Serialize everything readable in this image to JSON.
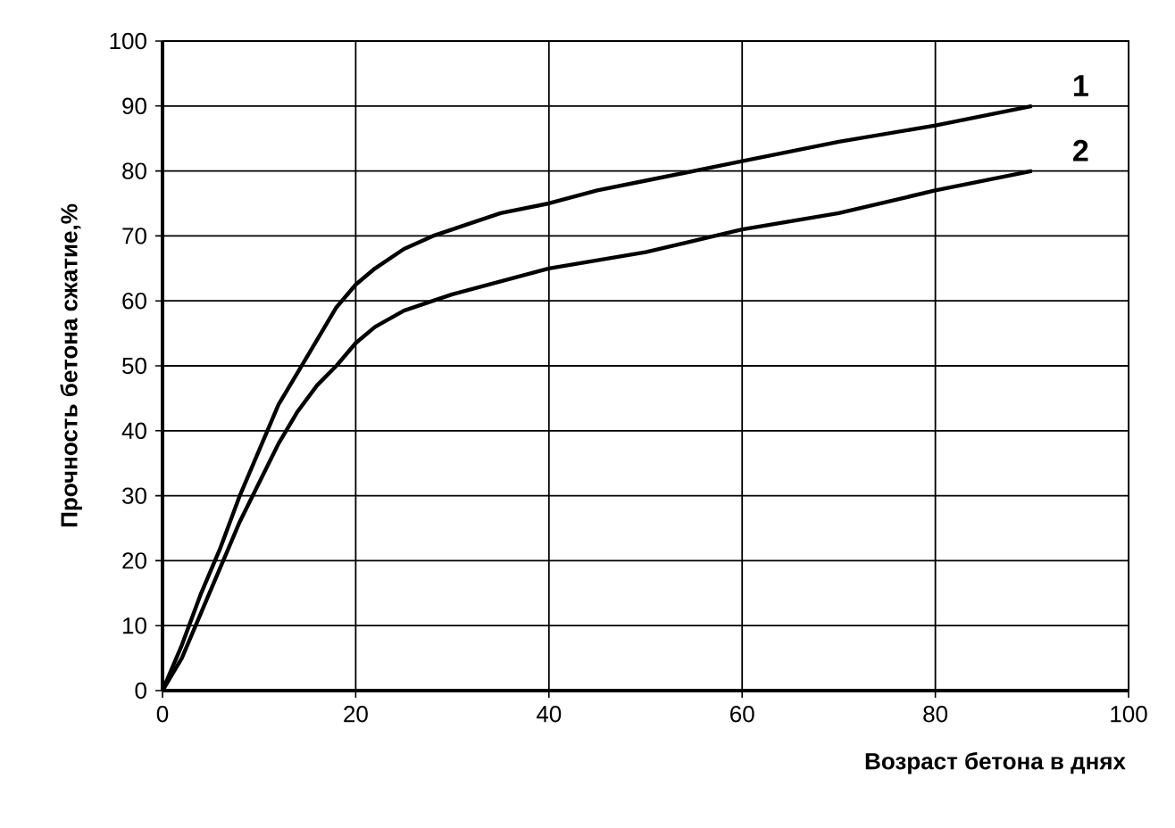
{
  "chart_data": {
    "type": "line",
    "xlabel": "Возраст бетона в днях",
    "ylabel": "Прочность бетона сжатие,%",
    "series": [
      {
        "name": "1",
        "color": "#000000",
        "x": [
          0,
          2,
          4,
          6,
          8,
          10,
          12,
          14,
          16,
          18,
          20,
          22,
          25,
          28,
          30,
          35,
          40,
          45,
          50,
          55,
          60,
          70,
          80,
          90
        ],
        "values": [
          0,
          7,
          15,
          22,
          30,
          37,
          44,
          49,
          54,
          59,
          62.5,
          65,
          68,
          70,
          71,
          73.5,
          75,
          77,
          78.5,
          80,
          81.5,
          84.5,
          87,
          90
        ]
      },
      {
        "name": "2",
        "color": "#000000",
        "x": [
          0,
          2,
          4,
          6,
          8,
          10,
          12,
          14,
          16,
          18,
          20,
          22,
          25,
          28,
          30,
          35,
          40,
          50,
          60,
          70,
          80,
          90
        ],
        "values": [
          0,
          5,
          12,
          19,
          26,
          32,
          38,
          43,
          47,
          50,
          53.5,
          56,
          58.5,
          60,
          61,
          63,
          65,
          67.5,
          71,
          73.5,
          77,
          80
        ]
      }
    ],
    "xlim": [
      0,
      100
    ],
    "xticks": [
      0,
      20,
      40,
      60,
      80,
      100
    ],
    "ylim": [
      0,
      100
    ],
    "yticks": [
      0,
      10,
      20,
      30,
      40,
      50,
      60,
      70,
      80,
      90,
      100
    ],
    "grid": true,
    "marker": "none",
    "line_style": "solid"
  }
}
